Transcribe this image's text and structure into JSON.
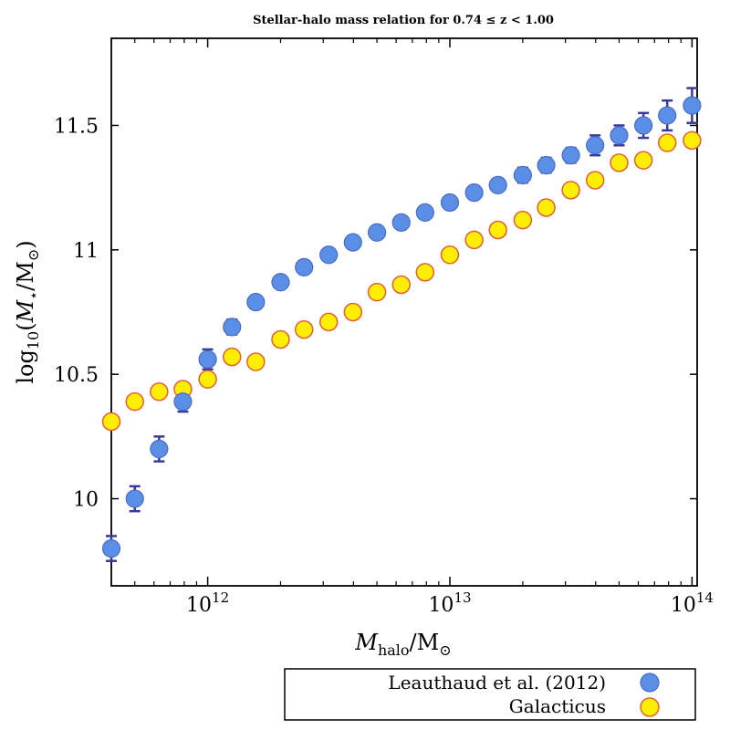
{
  "chart_data": {
    "type": "scatter",
    "title": "Stellar-halo mass relation for 0.74 ≤ z < 1.00",
    "xlabel": "M_halo/M⊙",
    "ylabel": "log10(M⋆/M⊙)",
    "xscale": "log",
    "xlim": [
      400000000000.0,
      105000000000000.0
    ],
    "ylim": [
      9.65,
      11.85
    ],
    "xticks": [
      {
        "value": 1000000000000.0,
        "label": "10^12"
      },
      {
        "value": 10000000000000.0,
        "label": "10^13"
      },
      {
        "value": 100000000000000.0,
        "label": "10^14"
      }
    ],
    "yticks": [
      {
        "value": 10.0,
        "label": "10"
      },
      {
        "value": 10.5,
        "label": "10.5"
      },
      {
        "value": 11.0,
        "label": "11"
      },
      {
        "value": 11.5,
        "label": "11.5"
      }
    ],
    "legend_position": "below",
    "series": [
      {
        "name": "Leauthaud et al. (2012)",
        "color": "#5b8ee6",
        "edge": "#4a6cc0",
        "errorbar_color": "#3a3a9a",
        "x": [
          400000000000.0,
          500000000000.0,
          630000000000.0,
          790000000000.0,
          1000000000000.0,
          1260000000000.0,
          1580000000000.0,
          2000000000000.0,
          2500000000000.0,
          3160000000000.0,
          3980000000000.0,
          5000000000000.0,
          6300000000000.0,
          7900000000000.0,
          10000000000000.0,
          12600000000000.0,
          15800000000000.0,
          20000000000000.0,
          25000000000000.0,
          31600000000000.0,
          39800000000000.0,
          50000000000000.0,
          63000000000000.0,
          79000000000000.0,
          100000000000000.0
        ],
        "y": [
          9.8,
          10.0,
          10.2,
          10.39,
          10.56,
          10.69,
          10.79,
          10.87,
          10.93,
          10.98,
          11.03,
          11.07,
          11.11,
          11.15,
          11.19,
          11.23,
          11.26,
          11.3,
          11.34,
          11.38,
          11.42,
          11.46,
          11.5,
          11.54,
          11.58
        ],
        "yerr": [
          0.05,
          0.05,
          0.05,
          0.04,
          0.04,
          0.03,
          0.02,
          0.02,
          0.02,
          0.02,
          0.02,
          0.02,
          0.02,
          0.02,
          0.02,
          0.02,
          0.02,
          0.03,
          0.03,
          0.03,
          0.04,
          0.04,
          0.05,
          0.06,
          0.07
        ]
      },
      {
        "name": "Galacticus",
        "color": "#ffee00",
        "edge": "#e0603a",
        "x": [
          400000000000.0,
          500000000000.0,
          630000000000.0,
          790000000000.0,
          1000000000000.0,
          1260000000000.0,
          1580000000000.0,
          2000000000000.0,
          2500000000000.0,
          3160000000000.0,
          3980000000000.0,
          5000000000000.0,
          6300000000000.0,
          7900000000000.0,
          10000000000000.0,
          12600000000000.0,
          15800000000000.0,
          20000000000000.0,
          25000000000000.0,
          31600000000000.0,
          39800000000000.0,
          50000000000000.0,
          63000000000000.0,
          79000000000000.0,
          100000000000000.0
        ],
        "y": [
          10.31,
          10.39,
          10.43,
          10.44,
          10.48,
          10.57,
          10.55,
          10.64,
          10.68,
          10.71,
          10.75,
          10.83,
          10.86,
          10.91,
          10.98,
          11.04,
          11.08,
          11.12,
          11.17,
          11.24,
          11.28,
          11.35,
          11.36,
          11.43,
          11.44
        ]
      }
    ]
  }
}
